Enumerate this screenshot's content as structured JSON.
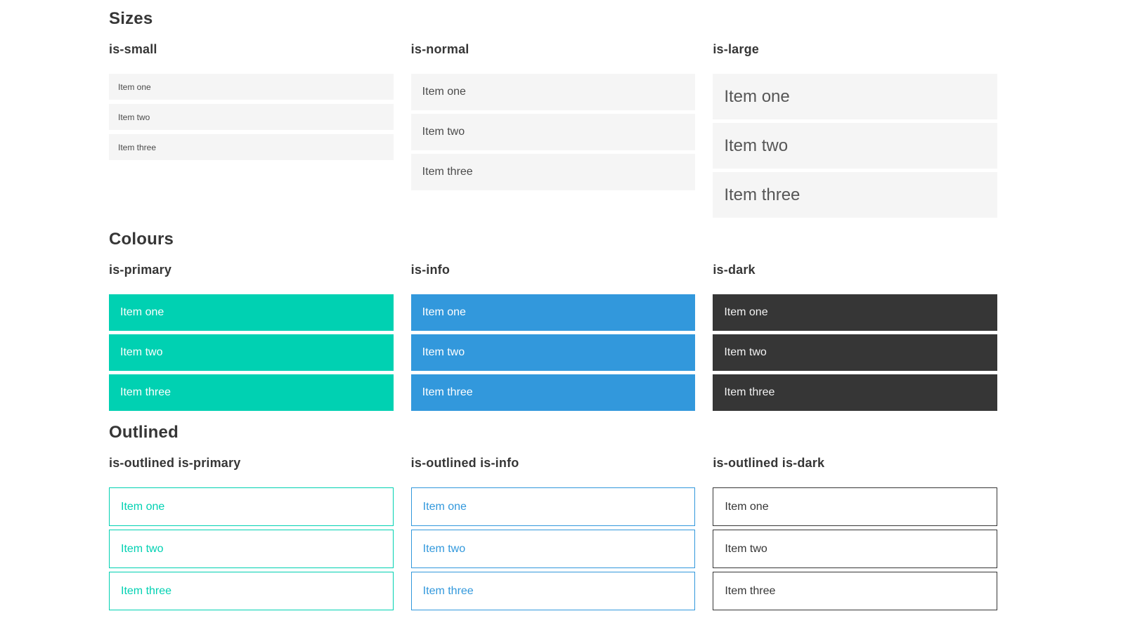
{
  "colors": {
    "primary": "#00d1b2",
    "info": "#3298dc",
    "dark": "#363636",
    "item_bg": "#f5f5f5",
    "text": "#4a4a4a",
    "heading": "#363636"
  },
  "sections": [
    {
      "title": "Sizes",
      "groups": [
        {
          "label": "is-small",
          "variant": "small",
          "items": [
            "Item one",
            "Item two",
            "Item three"
          ]
        },
        {
          "label": "is-normal",
          "variant": "normal",
          "items": [
            "Item one",
            "Item two",
            "Item three"
          ]
        },
        {
          "label": "is-large",
          "variant": "large",
          "items": [
            "Item one",
            "Item two",
            "Item three"
          ]
        }
      ]
    },
    {
      "title": "Colours",
      "groups": [
        {
          "label": "is-primary",
          "variant": "primary",
          "items": [
            "Item one",
            "Item two",
            "Item three"
          ]
        },
        {
          "label": "is-info",
          "variant": "info",
          "items": [
            "Item one",
            "Item two",
            "Item three"
          ]
        },
        {
          "label": "is-dark",
          "variant": "dark",
          "items": [
            "Item one",
            "Item two",
            "Item three"
          ]
        }
      ]
    },
    {
      "title": "Outlined",
      "groups": [
        {
          "label": "is-outlined is-primary",
          "variant": "outlined-primary",
          "items": [
            "Item one",
            "Item two",
            "Item three"
          ]
        },
        {
          "label": "is-outlined is-info",
          "variant": "outlined-info",
          "items": [
            "Item one",
            "Item two",
            "Item three"
          ]
        },
        {
          "label": "is-outlined is-dark",
          "variant": "outlined-dark",
          "items": [
            "Item one",
            "Item two",
            "Item three"
          ]
        }
      ]
    }
  ]
}
